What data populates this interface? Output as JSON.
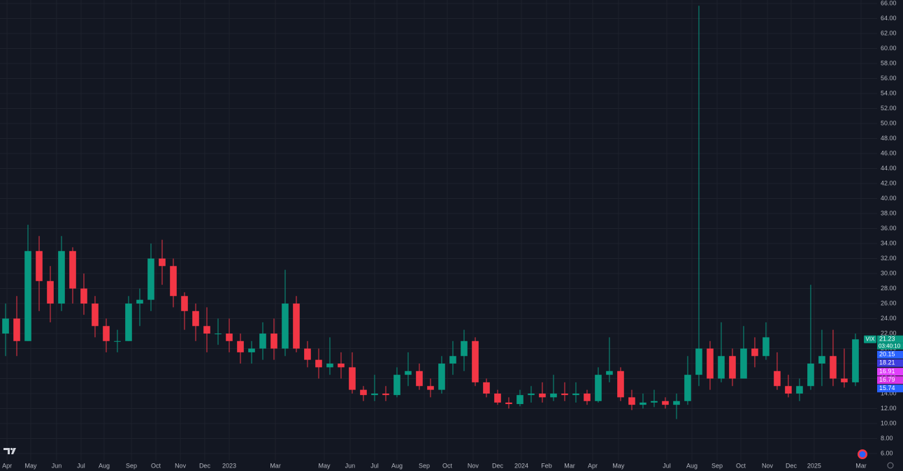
{
  "chart_data": {
    "type": "candlestick",
    "open": [
      22,
      24,
      21,
      33,
      29,
      26,
      33,
      28,
      26,
      23,
      21,
      21,
      26,
      26.5,
      32,
      31,
      27,
      25,
      23,
      22,
      22,
      21,
      19.5,
      20,
      22,
      20,
      26,
      20,
      18.5,
      17.5,
      18,
      17.5,
      14.5,
      13.8,
      14,
      13.8,
      16.5,
      17,
      15,
      14.5,
      18,
      19,
      21,
      15.5,
      14,
      12.8,
      12.6,
      13.8,
      14,
      13.5,
      14,
      13.8,
      14,
      13,
      16.5,
      17,
      13.5,
      12.5,
      12.8,
      13,
      12.5,
      13,
      16.5,
      20,
      16,
      19,
      16,
      20,
      19,
      17,
      15,
      14,
      15,
      18,
      19,
      16,
      15.5
    ],
    "high": [
      26,
      27,
      36.5,
      35,
      31,
      35,
      33.5,
      30,
      27,
      24,
      22.5,
      27,
      28,
      34,
      34.5,
      32,
      27.5,
      26,
      25.5,
      24,
      24,
      22,
      21,
      23.5,
      24,
      30.5,
      27,
      21,
      20,
      21.5,
      19.5,
      19.5,
      15,
      16.5,
      15,
      17.5,
      19.5,
      18,
      16,
      19,
      21,
      22.5,
      21.5,
      16,
      14.5,
      13.5,
      14.5,
      15,
      15.5,
      16.5,
      15.5,
      15.5,
      14.5,
      17.5,
      21.5,
      17.5,
      14.5,
      14,
      14.5,
      13.5,
      14,
      19,
      65.7,
      21,
      23.5,
      20,
      23,
      21.5,
      23.5,
      19.5,
      16.5,
      16,
      28.5,
      22.5,
      22.5,
      20,
      22
    ],
    "low": [
      19,
      19,
      21,
      25,
      23.5,
      25,
      26,
      24.5,
      21.5,
      19.5,
      19.5,
      21,
      23,
      25,
      28.5,
      25.5,
      22.5,
      21,
      19.5,
      20.5,
      19.5,
      18,
      18,
      18.5,
      18.5,
      19,
      19.5,
      17.5,
      16,
      16.5,
      16,
      14,
      13,
      13,
      13,
      13.5,
      15,
      14.5,
      13.5,
      14,
      16.5,
      17,
      15,
      13.5,
      12.5,
      12,
      12.3,
      12.8,
      12.8,
      13,
      13,
      12.8,
      12.5,
      12.8,
      15.5,
      13,
      11.8,
      12,
      12.2,
      12,
      10.6,
      12.5,
      15,
      14.5,
      15.5,
      15,
      16,
      17.5,
      18.5,
      14.5,
      13.5,
      13,
      14.5,
      15,
      15,
      14.8,
      15
    ],
    "close": [
      24,
      21,
      33,
      29,
      26,
      33,
      28,
      26,
      23,
      21,
      21,
      26,
      26.5,
      32,
      31,
      27,
      25,
      23,
      22,
      22,
      21,
      19.5,
      20,
      22,
      20,
      26,
      20,
      18.5,
      17.5,
      18,
      17.5,
      14.5,
      13.8,
      14,
      13.8,
      16.5,
      17,
      15,
      14.5,
      18,
      19,
      21,
      15.5,
      14,
      12.8,
      12.6,
      13.8,
      14,
      13.5,
      14,
      13.8,
      14,
      13,
      16.5,
      17,
      13.5,
      12.5,
      12.8,
      13,
      12.5,
      13,
      16.5,
      20,
      16,
      19,
      16,
      20,
      19,
      21.5,
      15,
      14,
      15,
      18,
      19,
      16,
      15.5,
      21.23
    ],
    "up_color": "#089981",
    "down_color": "#f23645",
    "xlim": [
      -0.5,
      77.94
    ],
    "xticks": [
      {
        "value": 0.13,
        "label": "Apr"
      },
      {
        "value": 2.25,
        "label": "May"
      },
      {
        "value": 4.56,
        "label": "Jun"
      },
      {
        "value": 6.75,
        "label": "Jul"
      },
      {
        "value": 8.81,
        "label": "Aug"
      },
      {
        "value": 11.25,
        "label": "Sep"
      },
      {
        "value": 13.44,
        "label": "Oct"
      },
      {
        "value": 15.63,
        "label": "Nov"
      },
      {
        "value": 17.81,
        "label": "Dec"
      },
      {
        "value": 20,
        "label": "2023"
      },
      {
        "value": 24.13,
        "label": "Mar"
      },
      {
        "value": 28.5,
        "label": "May"
      },
      {
        "value": 30.81,
        "label": "Jun"
      },
      {
        "value": 33,
        "label": "Jul"
      },
      {
        "value": 35,
        "label": "Aug"
      },
      {
        "value": 37.44,
        "label": "Sep"
      },
      {
        "value": 39.5,
        "label": "Oct"
      },
      {
        "value": 41.81,
        "label": "Nov"
      },
      {
        "value": 44,
        "label": "Dec"
      },
      {
        "value": 46.13,
        "label": "2024"
      },
      {
        "value": 48.38,
        "label": "Feb"
      },
      {
        "value": 50.44,
        "label": "Mar"
      },
      {
        "value": 52.5,
        "label": "Apr"
      },
      {
        "value": 54.81,
        "label": "May"
      },
      {
        "value": 59.13,
        "label": "Jul"
      },
      {
        "value": 61.38,
        "label": "Aug"
      },
      {
        "value": 63.63,
        "label": "Sep"
      },
      {
        "value": 65.75,
        "label": "Oct"
      },
      {
        "value": 68.13,
        "label": "Nov"
      },
      {
        "value": 70.25,
        "label": "Dec"
      },
      {
        "value": 72.31,
        "label": "2025"
      },
      {
        "value": 76.5,
        "label": "Mar"
      }
    ],
    "ylim": [
      5.07,
      66.47
    ],
    "yticks": [
      {
        "value": 6,
        "label": "6.00"
      },
      {
        "value": 8,
        "label": "8.00"
      },
      {
        "value": 10,
        "label": "10.00"
      },
      {
        "value": 12,
        "label": "12.00"
      },
      {
        "value": 14,
        "label": "14.00"
      },
      {
        "value": 16,
        "label": "16.00"
      },
      {
        "value": 18,
        "label": "18.00"
      },
      {
        "value": 20,
        "label": "20.00"
      },
      {
        "value": 22,
        "label": "22.00"
      },
      {
        "value": 24,
        "label": "24.00"
      },
      {
        "value": 26,
        "label": "26.00"
      },
      {
        "value": 28,
        "label": "28.00"
      },
      {
        "value": 30,
        "label": "30.00"
      },
      {
        "value": 32,
        "label": "32.00"
      },
      {
        "value": 34,
        "label": "34.00"
      },
      {
        "value": 36,
        "label": "36.00"
      },
      {
        "value": 38,
        "label": "38.00"
      },
      {
        "value": 40,
        "label": "40.00"
      },
      {
        "value": 42,
        "label": "42.00"
      },
      {
        "value": 44,
        "label": "44.00"
      },
      {
        "value": 46,
        "label": "46.00"
      },
      {
        "value": 48,
        "label": "48.00"
      },
      {
        "value": 50,
        "label": "50.00"
      },
      {
        "value": 52,
        "label": "52.00"
      },
      {
        "value": 54,
        "label": "54.00"
      },
      {
        "value": 56,
        "label": "56.00"
      },
      {
        "value": 58,
        "label": "58.00"
      },
      {
        "value": 60,
        "label": "60.00"
      },
      {
        "value": 62,
        "label": "62.00"
      },
      {
        "value": 64,
        "label": "64.00"
      },
      {
        "value": 66,
        "label": "66.00"
      }
    ],
    "grid": true,
    "price_tags": [
      {
        "name": "VIX",
        "value": 21.23,
        "color": "#089981"
      },
      {
        "value": 20.15,
        "color": "#2962ff"
      },
      {
        "value": 18.21,
        "color": "#3d3dde"
      },
      {
        "value": 16.91,
        "color": "#e040fb"
      },
      {
        "value": 16.79,
        "color": "#d936e8"
      },
      {
        "value": 15.74,
        "color": "#2962ff"
      }
    ],
    "countdown": "03:40:10"
  }
}
